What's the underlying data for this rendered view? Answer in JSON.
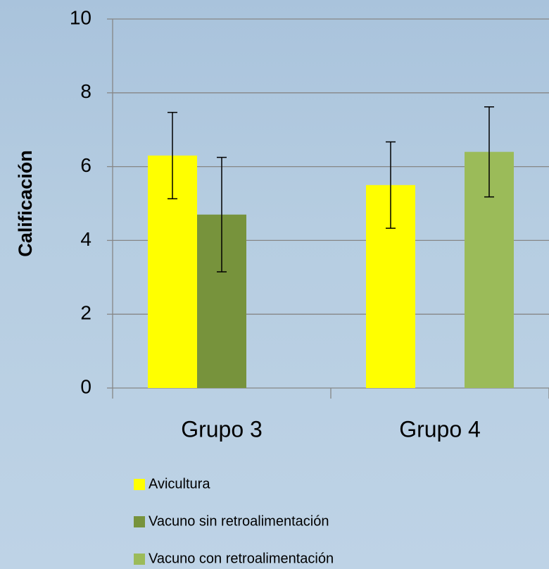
{
  "chart_data": {
    "type": "bar",
    "y_label": "Calificación",
    "categories": [
      "Grupo 3",
      "Grupo 4"
    ],
    "series": [
      {
        "name": "Avicultura",
        "color": "#ffff00",
        "values": [
          6.3,
          5.5
        ],
        "errors": [
          1.17,
          1.17
        ]
      },
      {
        "name": "Vacuno sin retroalimentación",
        "color": "#77933c",
        "values": [
          4.7,
          null
        ],
        "errors": [
          1.55,
          null
        ]
      },
      {
        "name": "Vacuno con retroalimentación",
        "color": "#9bbb59",
        "values": [
          null,
          6.4
        ],
        "errors": [
          null,
          1.22
        ]
      }
    ],
    "ylim": [
      0,
      10
    ],
    "yticks": [
      0,
      2,
      4,
      6,
      8,
      10
    ],
    "grid": true,
    "legend": "bottom"
  }
}
